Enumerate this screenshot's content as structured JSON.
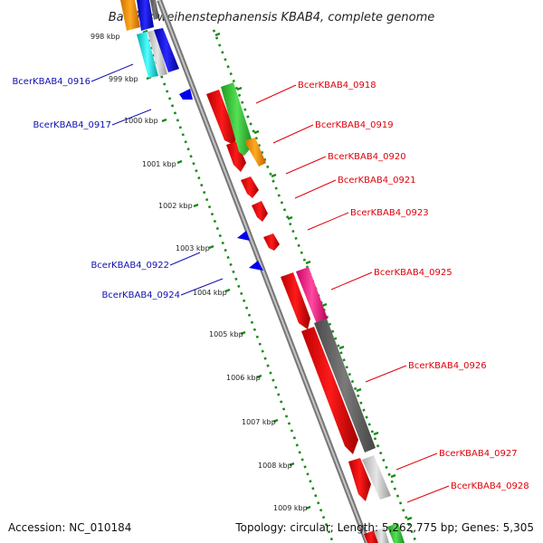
{
  "title": "Bacillus weihenstephanensis KBAB4, complete genome",
  "footer": {
    "accession": "Accession: NC_010184",
    "stats": "Topology: circular; Length: 5,262,775 bp; Genes: 5,305"
  },
  "scale": [
    {
      "label": "998 kbp",
      "pos": 998
    },
    {
      "label": "999 kbp",
      "pos": 999
    },
    {
      "label": "1000 kbp",
      "pos": 1000
    },
    {
      "label": "1001 kbp",
      "pos": 1001
    },
    {
      "label": "1002 kbp",
      "pos": 1002
    },
    {
      "label": "1003 kbp",
      "pos": 1003
    },
    {
      "label": "1004 kbp",
      "pos": 1004
    },
    {
      "label": "1005 kbp",
      "pos": 1005
    },
    {
      "label": "1006 kbp",
      "pos": 1006
    },
    {
      "label": "1007 kbp",
      "pos": 1007
    },
    {
      "label": "1008 kbp",
      "pos": 1008
    },
    {
      "label": "1009 kbp",
      "pos": 1009
    }
  ],
  "genes_forward": [
    "BcerKBAB4_0918",
    "BcerKBAB4_0919",
    "BcerKBAB4_0920",
    "BcerKBAB4_0921",
    "BcerKBAB4_0923",
    "BcerKBAB4_0925",
    "BcerKBAB4_0926",
    "BcerKBAB4_0927",
    "BcerKBAB4_0928"
  ],
  "genes_reverse": [
    "BcerKBAB4_0916",
    "BcerKBAB4_0917",
    "BcerKBAB4_0922",
    "BcerKBAB4_0924"
  ],
  "colors": {
    "forward_gene": "#ff0000",
    "reverse_gene": "#0000ff",
    "forward_label": "#e0000a",
    "reverse_label": "#1010b0",
    "backbone": "#888888",
    "ruler_dots": "#1a8a1a",
    "green_feature": "#33cc33",
    "orange_feature": "#ff9900",
    "magenta_feature": "#ff3399",
    "gray_feature": "#666666",
    "light_gray_feature": "#cccccc",
    "cyan_feature": "#00e5e5"
  }
}
